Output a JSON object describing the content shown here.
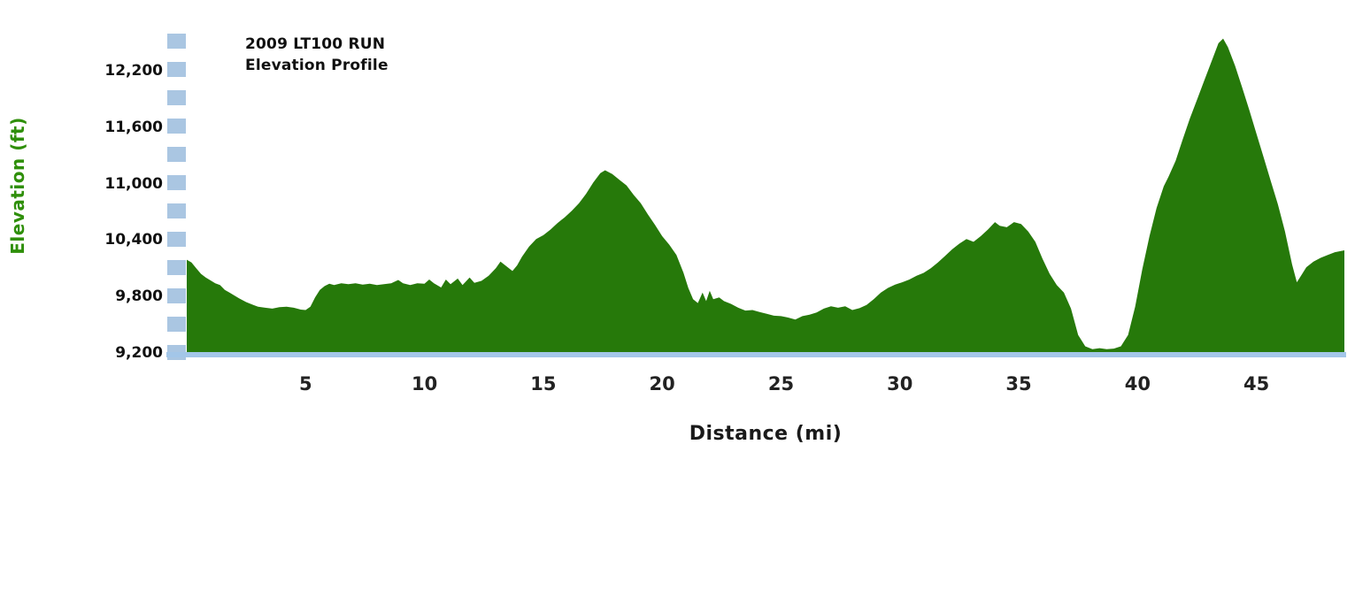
{
  "chart_data": {
    "type": "area",
    "title": "2009 LT100 RUN",
    "subtitle": "Elevation Profile",
    "xlabel": "Distance (mi)",
    "ylabel": "Elevation (ft)",
    "xlim": [
      0,
      48.7
    ],
    "ylim": [
      9200,
      12800
    ],
    "x_ticks": [
      5,
      10,
      15,
      20,
      25,
      30,
      35,
      40,
      45
    ],
    "y_ticks": [
      {
        "value": 9200,
        "label": "9,200"
      },
      {
        "value": 9800,
        "label": "9,800"
      },
      {
        "value": 10400,
        "label": "10,400"
      },
      {
        "value": 11000,
        "label": "11,000"
      },
      {
        "value": 11600,
        "label": "11,600"
      },
      {
        "value": 12200,
        "label": "12,200"
      }
    ],
    "grid": false,
    "legend": "none",
    "series_name": "Elevation",
    "points": [
      [
        0,
        10200
      ],
      [
        0.2,
        10170
      ],
      [
        0.4,
        10110
      ],
      [
        0.6,
        10050
      ],
      [
        0.8,
        10010
      ],
      [
        1,
        9980
      ],
      [
        1.2,
        9950
      ],
      [
        1.4,
        9930
      ],
      [
        1.6,
        9880
      ],
      [
        1.8,
        9850
      ],
      [
        2,
        9820
      ],
      [
        2.2,
        9790
      ],
      [
        2.5,
        9750
      ],
      [
        2.8,
        9720
      ],
      [
        3,
        9700
      ],
      [
        3.3,
        9690
      ],
      [
        3.6,
        9680
      ],
      [
        3.9,
        9695
      ],
      [
        4.2,
        9700
      ],
      [
        4.5,
        9690
      ],
      [
        4.8,
        9670
      ],
      [
        5,
        9665
      ],
      [
        5.2,
        9700
      ],
      [
        5.4,
        9800
      ],
      [
        5.6,
        9880
      ],
      [
        5.8,
        9920
      ],
      [
        6,
        9945
      ],
      [
        6.2,
        9930
      ],
      [
        6.5,
        9950
      ],
      [
        6.8,
        9940
      ],
      [
        7.1,
        9950
      ],
      [
        7.4,
        9935
      ],
      [
        7.7,
        9945
      ],
      [
        8,
        9930
      ],
      [
        8.3,
        9940
      ],
      [
        8.6,
        9950
      ],
      [
        8.9,
        9985
      ],
      [
        9.1,
        9950
      ],
      [
        9.4,
        9930
      ],
      [
        9.7,
        9950
      ],
      [
        10,
        9945
      ],
      [
        10.2,
        9990
      ],
      [
        10.4,
        9950
      ],
      [
        10.7,
        9905
      ],
      [
        10.9,
        9990
      ],
      [
        11.1,
        9940
      ],
      [
        11.4,
        10000
      ],
      [
        11.6,
        9930
      ],
      [
        11.9,
        10010
      ],
      [
        12.1,
        9955
      ],
      [
        12.4,
        9975
      ],
      [
        12.7,
        10030
      ],
      [
        13,
        10110
      ],
      [
        13.2,
        10180
      ],
      [
        13.4,
        10140
      ],
      [
        13.7,
        10080
      ],
      [
        13.9,
        10140
      ],
      [
        14.1,
        10230
      ],
      [
        14.4,
        10340
      ],
      [
        14.7,
        10420
      ],
      [
        15,
        10460
      ],
      [
        15.3,
        10520
      ],
      [
        15.6,
        10590
      ],
      [
        15.9,
        10650
      ],
      [
        16.2,
        10720
      ],
      [
        16.5,
        10800
      ],
      [
        16.8,
        10900
      ],
      [
        17.1,
        11020
      ],
      [
        17.4,
        11120
      ],
      [
        17.6,
        11150
      ],
      [
        17.9,
        11110
      ],
      [
        18.2,
        11050
      ],
      [
        18.5,
        10990
      ],
      [
        18.8,
        10890
      ],
      [
        19.1,
        10800
      ],
      [
        19.4,
        10680
      ],
      [
        19.7,
        10570
      ],
      [
        20,
        10450
      ],
      [
        20.3,
        10360
      ],
      [
        20.6,
        10250
      ],
      [
        20.9,
        10060
      ],
      [
        21.1,
        9900
      ],
      [
        21.3,
        9780
      ],
      [
        21.5,
        9740
      ],
      [
        21.7,
        9850
      ],
      [
        21.85,
        9760
      ],
      [
        22,
        9870
      ],
      [
        22.15,
        9780
      ],
      [
        22.4,
        9800
      ],
      [
        22.6,
        9760
      ],
      [
        22.9,
        9730
      ],
      [
        23.2,
        9690
      ],
      [
        23.5,
        9660
      ],
      [
        23.8,
        9665
      ],
      [
        24.1,
        9645
      ],
      [
        24.4,
        9625
      ],
      [
        24.7,
        9605
      ],
      [
        25,
        9600
      ],
      [
        25.3,
        9585
      ],
      [
        25.6,
        9565
      ],
      [
        25.9,
        9600
      ],
      [
        26.2,
        9615
      ],
      [
        26.5,
        9640
      ],
      [
        26.8,
        9680
      ],
      [
        27.1,
        9705
      ],
      [
        27.4,
        9690
      ],
      [
        27.7,
        9705
      ],
      [
        28,
        9665
      ],
      [
        28.3,
        9685
      ],
      [
        28.6,
        9720
      ],
      [
        28.9,
        9780
      ],
      [
        29.2,
        9850
      ],
      [
        29.5,
        9900
      ],
      [
        29.8,
        9935
      ],
      [
        30.1,
        9960
      ],
      [
        30.4,
        9990
      ],
      [
        30.7,
        10030
      ],
      [
        31,
        10060
      ],
      [
        31.3,
        10110
      ],
      [
        31.6,
        10170
      ],
      [
        31.9,
        10240
      ],
      [
        32.2,
        10310
      ],
      [
        32.5,
        10370
      ],
      [
        32.8,
        10420
      ],
      [
        33.1,
        10390
      ],
      [
        33.4,
        10450
      ],
      [
        33.7,
        10520
      ],
      [
        34,
        10600
      ],
      [
        34.2,
        10560
      ],
      [
        34.5,
        10545
      ],
      [
        34.8,
        10600
      ],
      [
        35.1,
        10580
      ],
      [
        35.4,
        10500
      ],
      [
        35.7,
        10390
      ],
      [
        36,
        10210
      ],
      [
        36.3,
        10050
      ],
      [
        36.6,
        9930
      ],
      [
        36.9,
        9850
      ],
      [
        37.2,
        9680
      ],
      [
        37.5,
        9400
      ],
      [
        37.8,
        9280
      ],
      [
        38.1,
        9250
      ],
      [
        38.4,
        9260
      ],
      [
        38.7,
        9250
      ],
      [
        39,
        9255
      ],
      [
        39.3,
        9280
      ],
      [
        39.6,
        9400
      ],
      [
        39.9,
        9700
      ],
      [
        40.2,
        10100
      ],
      [
        40.5,
        10450
      ],
      [
        40.8,
        10750
      ],
      [
        41.1,
        10980
      ],
      [
        41.3,
        11080
      ],
      [
        41.6,
        11250
      ],
      [
        41.9,
        11480
      ],
      [
        42.2,
        11700
      ],
      [
        42.5,
        11900
      ],
      [
        42.8,
        12100
      ],
      [
        43.1,
        12300
      ],
      [
        43.4,
        12500
      ],
      [
        43.6,
        12550
      ],
      [
        43.8,
        12460
      ],
      [
        44.1,
        12260
      ],
      [
        44.4,
        12030
      ],
      [
        44.7,
        11790
      ],
      [
        45,
        11540
      ],
      [
        45.3,
        11290
      ],
      [
        45.6,
        11040
      ],
      [
        45.9,
        10790
      ],
      [
        46.2,
        10500
      ],
      [
        46.5,
        10150
      ],
      [
        46.7,
        9960
      ],
      [
        46.9,
        10040
      ],
      [
        47.1,
        10120
      ],
      [
        47.4,
        10180
      ],
      [
        47.7,
        10220
      ],
      [
        48,
        10250
      ],
      [
        48.3,
        10280
      ],
      [
        48.7,
        10300
      ]
    ],
    "colors": {
      "area_fill": "#26790a",
      "axis_label_green": "#2f8f0a",
      "axis_band": "#aac6e2",
      "baseline": "#a3c6e8",
      "text": "#111111"
    }
  }
}
